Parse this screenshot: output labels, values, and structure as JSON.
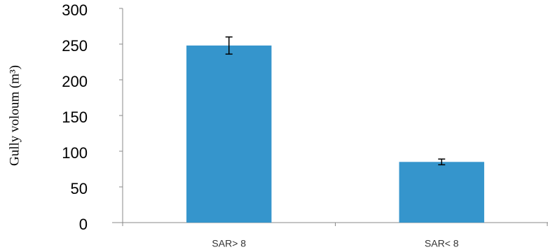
{
  "chart_data": {
    "type": "bar",
    "y_label": "Gully voloum (m³)",
    "categories": [
      "SAR> 8",
      "SAR< 8"
    ],
    "values": [
      248,
      85
    ],
    "errors": [
      12,
      4
    ],
    "color": "#3595cc",
    "ylim": [
      0,
      300
    ],
    "yticks": [
      0,
      50,
      100,
      150,
      200,
      250,
      300
    ]
  }
}
